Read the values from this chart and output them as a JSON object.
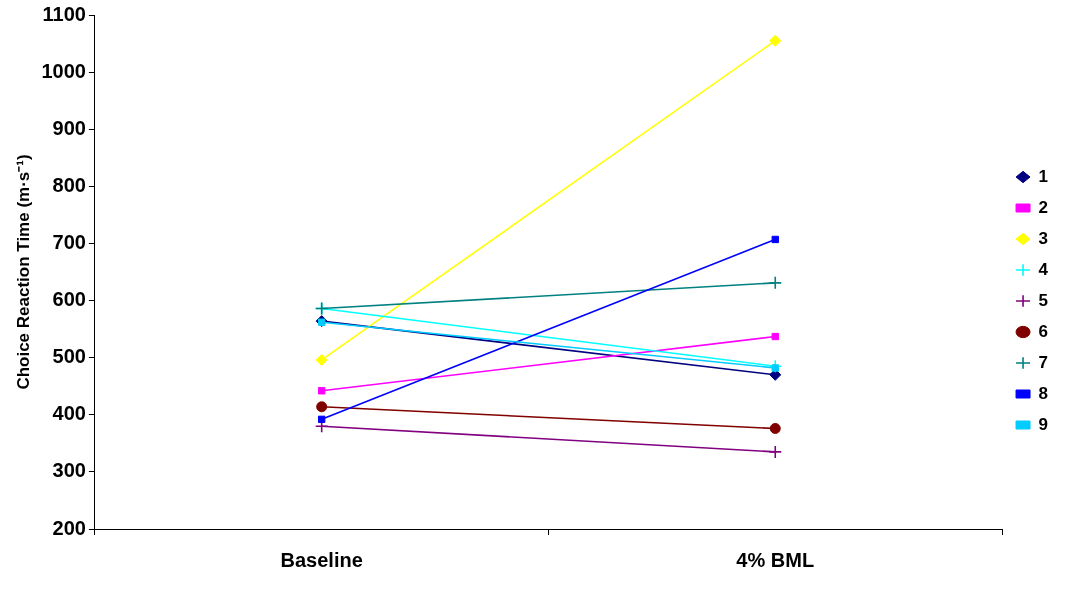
{
  "chart_data": {
    "type": "line",
    "ylabel": "Choice Reaction Time (m·s⁻¹)",
    "categories": [
      "Baseline",
      "4% BML"
    ],
    "ylim": [
      200,
      1100
    ],
    "yticks": [
      200,
      300,
      400,
      500,
      600,
      700,
      800,
      900,
      1000,
      1100
    ],
    "grid": false,
    "legend": "right",
    "line_style": "solid",
    "series": [
      {
        "name": "1",
        "color": "#000080",
        "marker": "diamond",
        "values": [
          564,
          470
        ]
      },
      {
        "name": "2",
        "color": "#ff00ff",
        "marker": "square",
        "values": [
          442,
          537
        ]
      },
      {
        "name": "3",
        "color": "#ffff00",
        "marker": "diamond",
        "values": [
          496,
          1055
        ]
      },
      {
        "name": "4",
        "color": "#00ffff",
        "marker": "cross",
        "values": [
          586,
          485
        ]
      },
      {
        "name": "5",
        "color": "#800080",
        "marker": "cross",
        "values": [
          380,
          335
        ]
      },
      {
        "name": "6",
        "color": "#800000",
        "marker": "circle",
        "values": [
          414,
          376
        ]
      },
      {
        "name": "7",
        "color": "#008080",
        "marker": "cross",
        "values": [
          586,
          631
        ]
      },
      {
        "name": "8",
        "color": "#0000ff",
        "marker": "square",
        "values": [
          392,
          707
        ]
      },
      {
        "name": "9",
        "color": "#00ccff",
        "marker": "square",
        "values": [
          562,
          482
        ]
      }
    ]
  }
}
